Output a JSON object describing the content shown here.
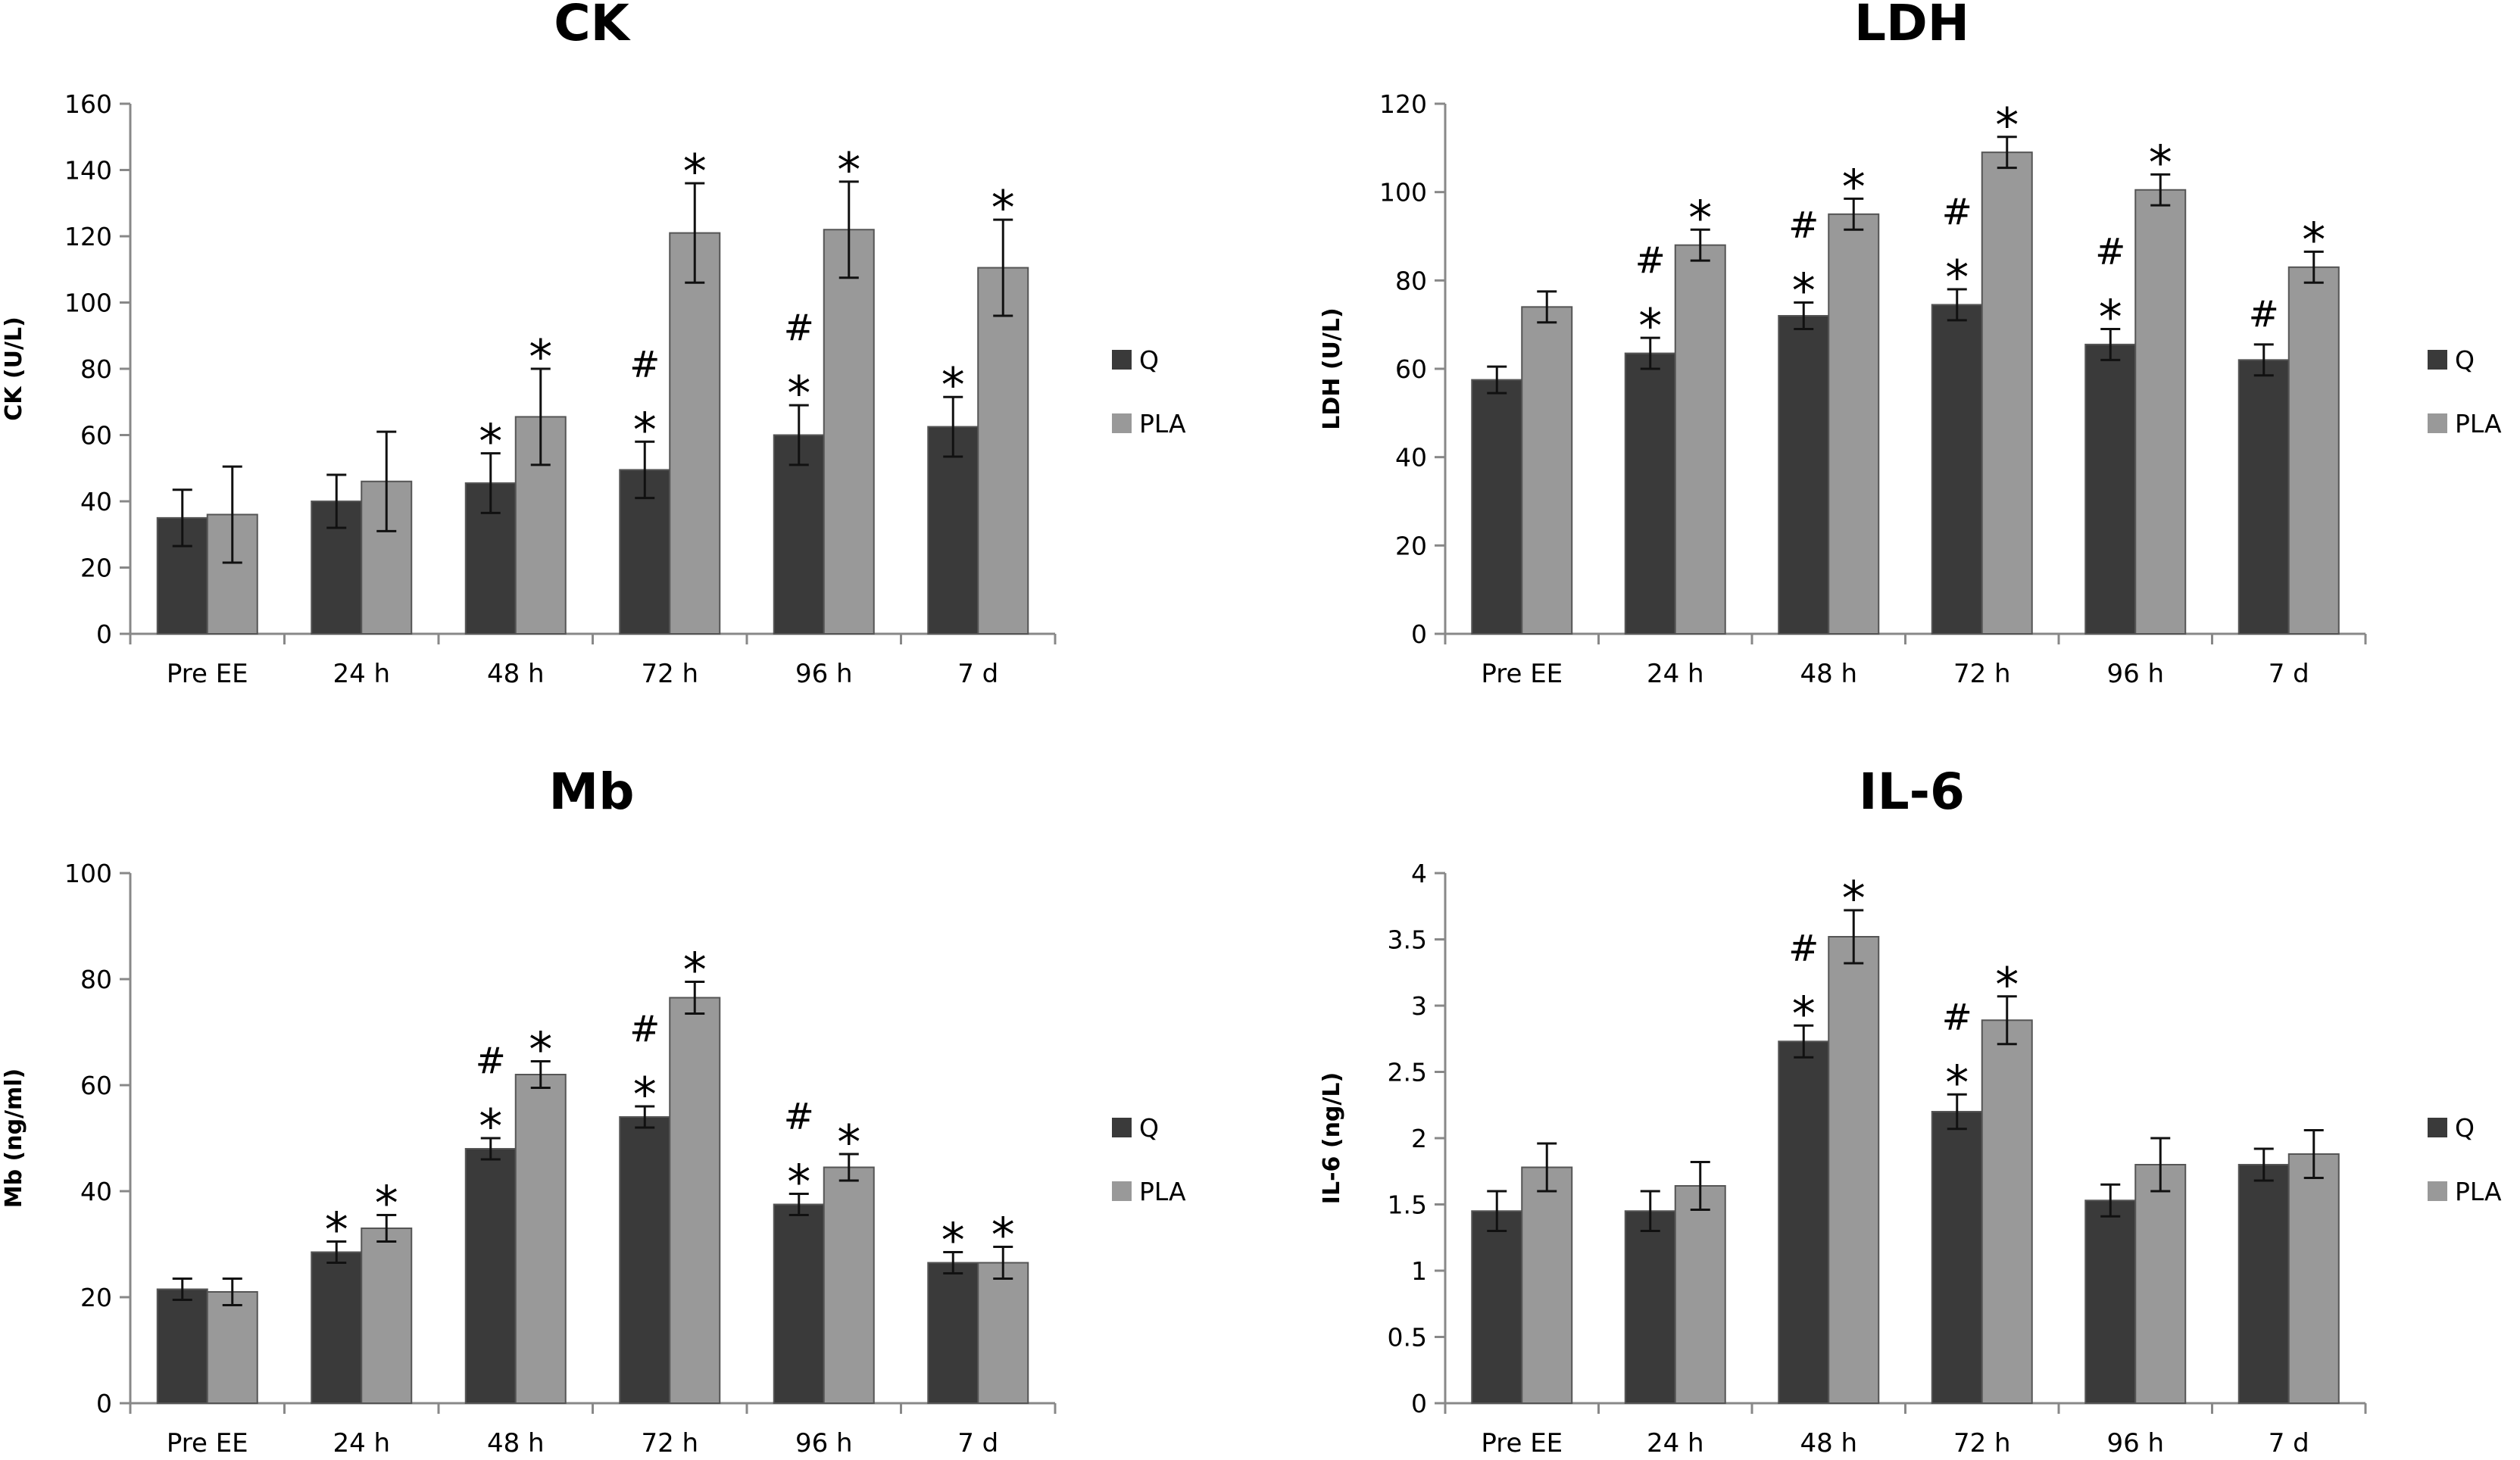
{
  "chart_data": [
    {
      "type": "bar",
      "title": "CK",
      "ylabel": "CK (U/L)",
      "xlabel": "",
      "ylim": [
        0,
        160
      ],
      "yticks": [
        0,
        20,
        40,
        60,
        80,
        100,
        120,
        140,
        160
      ],
      "categories": [
        "Pre EE",
        "24 h",
        "48 h",
        "72 h",
        "96 h",
        "7 d"
      ],
      "series": [
        {
          "name": "Q",
          "color": "#3a3a3a",
          "values": [
            35,
            40,
            45.5,
            49.5,
            60,
            62.5
          ],
          "errors": [
            8.5,
            8,
            9,
            8.5,
            9,
            9
          ]
        },
        {
          "name": "PLA",
          "color": "#999999",
          "values": [
            36,
            46,
            65.5,
            121,
            122,
            110.5
          ],
          "errors": [
            14.5,
            15,
            14.5,
            15,
            14.5,
            14.5
          ]
        }
      ],
      "annotations": [
        {
          "category": 2,
          "series": 0,
          "text": [
            "*"
          ]
        },
        {
          "category": 2,
          "series": 1,
          "text": [
            "*"
          ]
        },
        {
          "category": 3,
          "series": 0,
          "text": [
            "#",
            "*"
          ]
        },
        {
          "category": 3,
          "series": 1,
          "text": [
            "*"
          ]
        },
        {
          "category": 4,
          "series": 0,
          "text": [
            "#",
            "*"
          ]
        },
        {
          "category": 4,
          "series": 1,
          "text": [
            "*"
          ]
        },
        {
          "category": 5,
          "series": 0,
          "text": [
            "*"
          ]
        },
        {
          "category": 5,
          "series": 1,
          "text": [
            "*"
          ]
        }
      ]
    },
    {
      "type": "bar",
      "title": "LDH",
      "ylabel": "LDH (U/L)",
      "xlabel": "",
      "ylim": [
        0,
        120
      ],
      "yticks": [
        0,
        20,
        40,
        60,
        80,
        100,
        120
      ],
      "categories": [
        "Pre EE",
        "24 h",
        "48 h",
        "72 h",
        "96 h",
        "7 d"
      ],
      "series": [
        {
          "name": "Q",
          "color": "#3a3a3a",
          "values": [
            57.5,
            63.5,
            72,
            74.5,
            65.5,
            62
          ],
          "errors": [
            3,
            3.5,
            3,
            3.5,
            3.5,
            3.5
          ]
        },
        {
          "name": "PLA",
          "color": "#999999",
          "values": [
            74,
            88,
            95,
            109,
            100.5,
            83
          ],
          "errors": [
            3.5,
            3.5,
            3.5,
            3.5,
            3.5,
            3.5
          ]
        }
      ],
      "annotations": [
        {
          "category": 1,
          "series": 0,
          "text": [
            "#",
            "*"
          ]
        },
        {
          "category": 1,
          "series": 1,
          "text": [
            "*"
          ]
        },
        {
          "category": 2,
          "series": 0,
          "text": [
            "#",
            "*"
          ]
        },
        {
          "category": 2,
          "series": 1,
          "text": [
            "*"
          ]
        },
        {
          "category": 3,
          "series": 0,
          "text": [
            "#",
            "*"
          ]
        },
        {
          "category": 3,
          "series": 1,
          "text": [
            "*"
          ]
        },
        {
          "category": 4,
          "series": 0,
          "text": [
            "#",
            "*"
          ]
        },
        {
          "category": 4,
          "series": 1,
          "text": [
            "*"
          ]
        },
        {
          "category": 5,
          "series": 0,
          "text": [
            "#"
          ]
        },
        {
          "category": 5,
          "series": 1,
          "text": [
            "*"
          ]
        }
      ]
    },
    {
      "type": "bar",
      "title": "Mb",
      "ylabel": "Mb (ng/ml)",
      "xlabel": "",
      "ylim": [
        0,
        100
      ],
      "yticks": [
        0,
        20,
        40,
        60,
        80,
        100
      ],
      "categories": [
        "Pre EE",
        "24 h",
        "48 h",
        "72 h",
        "96 h",
        "7 d"
      ],
      "series": [
        {
          "name": "Q",
          "color": "#3a3a3a",
          "values": [
            21.5,
            28.5,
            48,
            54,
            37.5,
            26.5
          ],
          "errors": [
            2,
            2,
            2,
            2,
            2,
            2
          ]
        },
        {
          "name": "PLA",
          "color": "#999999",
          "values": [
            21,
            33,
            62,
            76.5,
            44.5,
            26.5
          ],
          "errors": [
            2.5,
            2.5,
            2.5,
            3,
            2.5,
            3
          ]
        }
      ],
      "annotations": [
        {
          "category": 1,
          "series": 0,
          "text": [
            "*"
          ]
        },
        {
          "category": 1,
          "series": 1,
          "text": [
            "*"
          ]
        },
        {
          "category": 2,
          "series": 0,
          "text": [
            "#",
            "*"
          ]
        },
        {
          "category": 2,
          "series": 1,
          "text": [
            "*"
          ]
        },
        {
          "category": 3,
          "series": 0,
          "text": [
            "#",
            "*"
          ]
        },
        {
          "category": 3,
          "series": 1,
          "text": [
            "*"
          ]
        },
        {
          "category": 4,
          "series": 0,
          "text": [
            "#",
            "*"
          ]
        },
        {
          "category": 4,
          "series": 1,
          "text": [
            "*"
          ]
        },
        {
          "category": 5,
          "series": 0,
          "text": [
            "*"
          ]
        },
        {
          "category": 5,
          "series": 1,
          "text": [
            "*"
          ]
        }
      ]
    },
    {
      "type": "bar",
      "title": "IL-6",
      "ylabel": "IL-6 (ng/L)",
      "xlabel": "",
      "ylim": [
        0,
        4
      ],
      "yticks": [
        "0",
        "0.5",
        "1",
        "1.5",
        "2",
        "2.5",
        "3",
        "3.5",
        "4"
      ],
      "categories": [
        "Pre EE",
        "24 h",
        "48 h",
        "72 h",
        "96 h",
        "7 d"
      ],
      "series": [
        {
          "name": "Q",
          "color": "#3a3a3a",
          "values": [
            1.45,
            1.45,
            2.73,
            2.2,
            1.53,
            1.8
          ],
          "errors": [
            0.15,
            0.15,
            0.12,
            0.13,
            0.12,
            0.12
          ]
        },
        {
          "name": "PLA",
          "color": "#999999",
          "values": [
            1.78,
            1.64,
            3.52,
            2.89,
            1.8,
            1.88
          ],
          "errors": [
            0.18,
            0.18,
            0.2,
            0.18,
            0.2,
            0.18
          ]
        }
      ],
      "annotations": [
        {
          "category": 2,
          "series": 0,
          "text": [
            "#",
            "*"
          ]
        },
        {
          "category": 2,
          "series": 1,
          "text": [
            "*"
          ]
        },
        {
          "category": 3,
          "series": 0,
          "text": [
            "#",
            "*"
          ]
        },
        {
          "category": 3,
          "series": 1,
          "text": [
            "*"
          ]
        }
      ]
    }
  ]
}
